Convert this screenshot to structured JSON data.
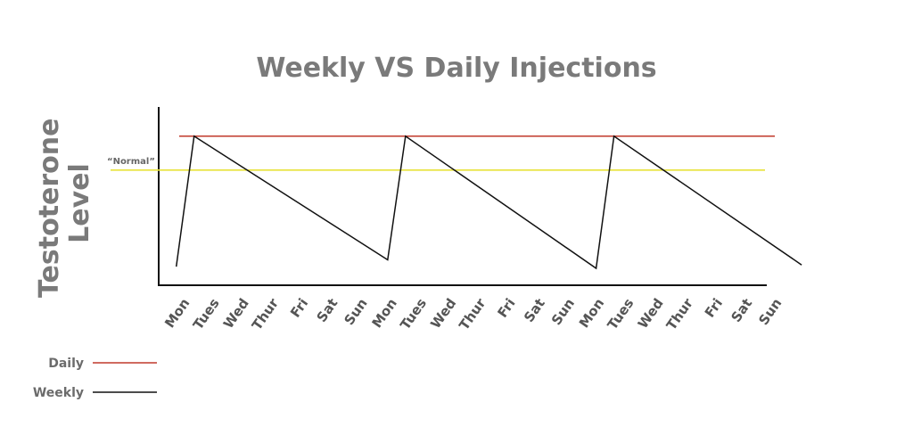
{
  "chart_data": {
    "type": "line",
    "title": "Weekly VS Daily Injections",
    "ylabel": "Testoterone Level",
    "xlabel": "",
    "categories": [
      "Mon",
      "Tues",
      "Wed",
      "Thur",
      "Fri",
      "Sat",
      "Sun",
      "Mon",
      "Tues",
      "Wed",
      "Thur",
      "Fri",
      "Sat",
      "Sun",
      "Mon",
      "Tues",
      "Wed",
      "Thur",
      "Fri",
      "Sat",
      "Sun"
    ],
    "ylim": [
      0,
      100
    ],
    "reference_line": {
      "label": "“Normal”",
      "value": 68,
      "color": "#e8e23a"
    },
    "grid": false,
    "legend_position": "bottom-left",
    "series": [
      {
        "name": "Daily",
        "color": "#c0392b",
        "points": [
          [
            0,
            88
          ],
          [
            20,
            88
          ]
        ]
      },
      {
        "name": "Weekly",
        "color": "#111111",
        "points": [
          [
            -0.1,
            11
          ],
          [
            0.5,
            88
          ],
          [
            7.0,
            15
          ],
          [
            7.6,
            88
          ],
          [
            14.0,
            10
          ],
          [
            14.6,
            88
          ],
          [
            20.9,
            12
          ]
        ]
      }
    ]
  }
}
